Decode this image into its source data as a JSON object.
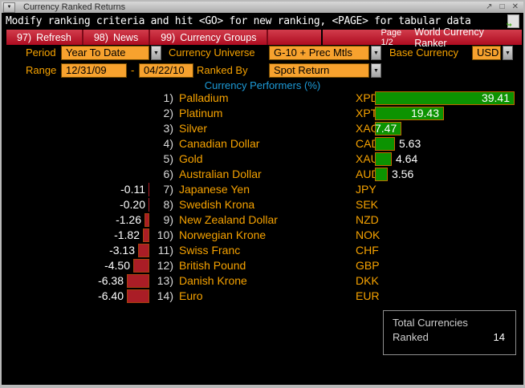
{
  "window": {
    "title": "Currency Ranked Returns"
  },
  "icons": {
    "window_menu": "▼",
    "popout": "↗",
    "maximize": "□",
    "close": "✕",
    "dropdown": "▼",
    "page_forward": "↪"
  },
  "header": {
    "message": "Modify ranking criteria and hit <GO> for new ranking, <PAGE> for tabular data"
  },
  "menubar": {
    "items": [
      {
        "id": "refresh",
        "num": "97)",
        "label": "Refresh"
      },
      {
        "id": "news",
        "num": "98)",
        "label": "News"
      },
      {
        "id": "currency-groups",
        "num": "99)",
        "label": "Currency Groups"
      }
    ],
    "page_indicator": "Page 1/2",
    "app_title": "World Currency Ranker"
  },
  "filters": {
    "period": {
      "label": "Period",
      "value": "Year To Date"
    },
    "currency_universe": {
      "label": "Currency Universe",
      "value": "G-10 + Prec Mtls"
    },
    "base_currency": {
      "label": "Base Currency",
      "value": "USD"
    },
    "range": {
      "label": "Range",
      "start": "12/31/09",
      "separator": "-",
      "end": "04/22/10"
    },
    "ranked_by": {
      "label": "Ranked By",
      "value": "Spot Return"
    }
  },
  "chart_data": {
    "type": "bar",
    "orientation": "horizontal",
    "title": "Currency Performers (%)",
    "value_unit": "%",
    "xlim": [
      -8,
      40
    ],
    "positive_color": "#0c9301",
    "negative_color": "#aa1d26",
    "rows": [
      {
        "rank": "1)",
        "name": "Palladium",
        "ticker": "XPD",
        "value": 39.41,
        "display": "39.41"
      },
      {
        "rank": "2)",
        "name": "Platinum",
        "ticker": "XPT",
        "value": 19.43,
        "display": "19.43"
      },
      {
        "rank": "3)",
        "name": "Silver",
        "ticker": "XAG",
        "value": 7.47,
        "display": "7.47"
      },
      {
        "rank": "4)",
        "name": "Canadian Dollar",
        "ticker": "CAD",
        "value": 5.63,
        "display": "5.63"
      },
      {
        "rank": "5)",
        "name": "Gold",
        "ticker": "XAU",
        "value": 4.64,
        "display": "4.64"
      },
      {
        "rank": "6)",
        "name": "Australian Dollar",
        "ticker": "AUD",
        "value": 3.56,
        "display": "3.56"
      },
      {
        "rank": "7)",
        "name": "Japanese Yen",
        "ticker": "JPY",
        "value": -0.11,
        "display": "-0.11"
      },
      {
        "rank": "8)",
        "name": "Swedish Krona",
        "ticker": "SEK",
        "value": -0.2,
        "display": "-0.20"
      },
      {
        "rank": "9)",
        "name": "New Zealand Dollar",
        "ticker": "NZD",
        "value": -1.26,
        "display": "-1.26"
      },
      {
        "rank": "10)",
        "name": "Norwegian Krone",
        "ticker": "NOK",
        "value": -1.82,
        "display": "-1.82"
      },
      {
        "rank": "11)",
        "name": "Swiss Franc",
        "ticker": "CHF",
        "value": -3.13,
        "display": "-3.13"
      },
      {
        "rank": "12)",
        "name": "British Pound",
        "ticker": "GBP",
        "value": -4.5,
        "display": "-4.50"
      },
      {
        "rank": "13)",
        "name": "Danish Krone",
        "ticker": "DKK",
        "value": -6.38,
        "display": "-6.38"
      },
      {
        "rank": "14)",
        "name": "Euro",
        "ticker": "EUR",
        "value": -6.4,
        "display": "-6.40"
      }
    ]
  },
  "summary": {
    "line1": "Total Currencies",
    "line2": "Ranked",
    "value": "14"
  },
  "colors": {
    "accent_amber": "#f6a200",
    "field_orange": "#f7a22e",
    "menu_red": "#be1126",
    "chart_title_cyan": "#1d9bd8",
    "positive_green": "#0c9301",
    "negative_red": "#aa1d26",
    "value_white": "#ffffff"
  }
}
